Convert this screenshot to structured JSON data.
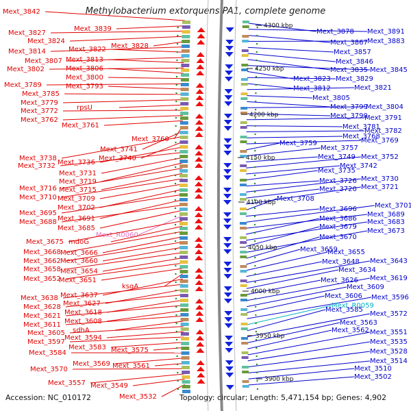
{
  "title": "Methylobacterium extorquens PA1, complete genome",
  "footer": {
    "accession": "Accession: NC_010172",
    "summary": "Topology: circular; Length: 5,471,154 bp; Genes: 4,902"
  },
  "colors": {
    "left_labels": "#e00000",
    "right_labels": "#0000cc",
    "rna_left": "#e070c0",
    "rna_right": "#00b0c0",
    "backbone": "#888888",
    "tick_dots": "#228822"
  },
  "scale_ticks": [
    "4300 kbp",
    "4250 kbp",
    "4200 kbp",
    "4150 kbp",
    "4100 kbp",
    "4050 kbp",
    "4000 kbp",
    "3950 kbp",
    "3900 kbp"
  ],
  "left_labels": [
    "Mext_3842",
    "Mext_3839",
    "Mext_3827",
    "Mext_3824",
    "Mext_3828",
    "Mext_3814",
    "Mext_3822",
    "Mext_3807",
    "Mext_3813",
    "Mext_3802",
    "Mext_3806",
    "Mext_3800",
    "Mext_3789",
    "Mext_3793",
    "Mext_3785",
    "Mext_3779",
    "rpsU",
    "Mext_3772",
    "Mext_3762",
    "Mext_3761",
    "Mext_3760",
    "Mext_3741",
    "Mext_3738",
    "Mext_3740",
    "Mext_3736",
    "Mext_3732",
    "Mext_3731",
    "Mext_3719",
    "Mext_3716",
    "Mext_3715",
    "Mext_3710",
    "Mext_3709",
    "Mext_3702",
    "Mext_3695",
    "Mext_3691",
    "Mext_3688",
    "Mext_3685",
    "Mext_R0060",
    "Mext_3675",
    "mdoG",
    "Mext_3668",
    "Mext_3666",
    "Mext_3662",
    "Mext_3660",
    "Mext_3658",
    "Mext_3654",
    "Mext_3652",
    "Mext_3651",
    "ksgA",
    "Mext_3637",
    "Mext_3638",
    "Mext_3627",
    "Mext_3628",
    "Mext_3618",
    "Mext_3621",
    "Mext_3608",
    "Mext_3611",
    "sdhA",
    "Mext_3605",
    "Mext_3594",
    "Mext_3597",
    "Mext_3583",
    "Mext_3575",
    "Mext_3584",
    "Mext_3569",
    "Mext_3561",
    "Mext_3570",
    "Mext_3557",
    "Mext_3549",
    "Mext_3532"
  ],
  "right_labels": [
    "Mext_3878",
    "Mext_3891",
    "Mext_3867",
    "Mext_3883",
    "Mext_3857",
    "Mext_3846",
    "Mext_3835",
    "Mext_3845",
    "Mext_3823",
    "Mext_3829",
    "Mext_3812",
    "Mext_3821",
    "Mext_3805",
    "Mext_3799",
    "Mext_3804",
    "Mext_3790",
    "Mext_3791",
    "Mext_3781",
    "Mext_3782",
    "Mext_3768",
    "Mext_3769",
    "Mext_3759",
    "Mext_3757",
    "Mext_3749",
    "Mext_3752",
    "Mext_3742",
    "Mext_3735",
    "Mext_3726",
    "Mext_3730",
    "Mext_3720",
    "Mext_3721",
    "Mext_3708",
    "Mext_3696",
    "Mext_3701",
    "Mext_3689",
    "Mext_3686",
    "Mext_3683",
    "Mext_3679",
    "Mext_3673",
    "Mext_3670",
    "Mext_3659",
    "Mext_3655",
    "Mext_3648",
    "Mext_3643",
    "Mext_3634",
    "Mext_3626",
    "Mext_3619",
    "Mext_3609",
    "Mext_3606",
    "Mext_3596",
    "Mext_R0059",
    "Mext_3585",
    "Mext_3572",
    "Mext_3563",
    "Mext_3562",
    "Mext_3551",
    "Mext_3535",
    "Mext_3528",
    "Mext_3514",
    "Mext_3510",
    "Mext_3502"
  ]
}
